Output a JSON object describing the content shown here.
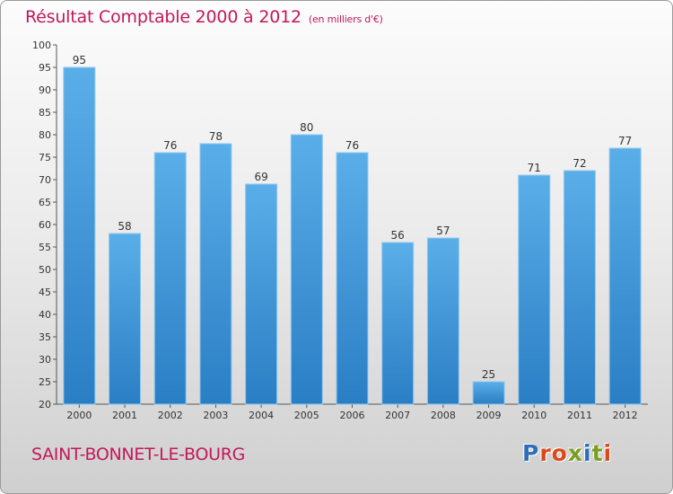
{
  "header": {
    "title": "Résultat Comptable 2000 à 2012",
    "subtitle": "(en milliers d'€)"
  },
  "footer": {
    "commune": "SAINT-BONNET-LE-BOURG",
    "logo": "Proxiti"
  },
  "colors": {
    "bar_light": "#5aaee8",
    "bar_dark": "#2a7ec4",
    "title": "#c2185b",
    "logo": [
      "#2f6fb5",
      "#d84a1b",
      "#d84a1b",
      "#7a9e1f",
      "#2f6fb5",
      "#7a9e1f",
      "#d84a1b"
    ]
  },
  "chart_data": {
    "type": "bar",
    "title": "Résultat Comptable 2000 à 2012",
    "subtitle": "(en milliers d'€)",
    "categories": [
      "2000",
      "2001",
      "2002",
      "2003",
      "2004",
      "2005",
      "2006",
      "2007",
      "2008",
      "2009",
      "2010",
      "2011",
      "2012"
    ],
    "values": [
      95,
      58,
      76,
      78,
      69,
      80,
      76,
      56,
      57,
      25,
      71,
      72,
      77
    ],
    "ylim": [
      20,
      100
    ],
    "yticks": [
      20,
      25,
      30,
      35,
      40,
      45,
      50,
      55,
      60,
      65,
      70,
      75,
      80,
      85,
      90,
      95,
      100
    ],
    "grid": false,
    "legend": "none"
  }
}
